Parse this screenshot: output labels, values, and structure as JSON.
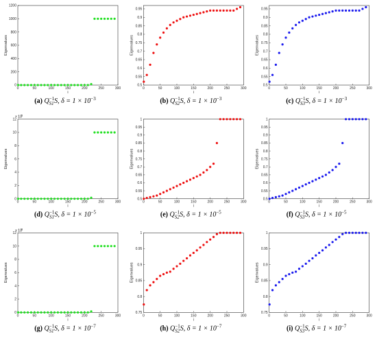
{
  "chart_data": [
    {
      "type": "scatter",
      "color": "#22e022",
      "xlabel": "i",
      "ylabel": "Eigenvalues",
      "caption": [
        {
          "text": "(a)",
          "style": "bold"
        },
        {
          "text": " Q",
          "style": "italic"
        },
        {
          "text": "−1",
          "style": "sup"
        },
        {
          "text": "S1",
          "style": "sub"
        },
        {
          "text": "S, δ = 1 × 10",
          "style": "italic"
        },
        {
          "text": "−3",
          "style": "sup"
        }
      ],
      "x": [
        1,
        10,
        20,
        30,
        40,
        50,
        60,
        70,
        80,
        90,
        100,
        110,
        120,
        130,
        140,
        150,
        160,
        170,
        180,
        190,
        200,
        210,
        220,
        230,
        240,
        250,
        260,
        270,
        280,
        290
      ],
      "values": [
        0,
        0,
        0,
        0,
        0,
        0,
        0,
        0,
        0,
        0,
        0,
        0,
        0,
        0,
        0,
        0,
        0,
        0,
        0,
        0,
        0,
        0,
        15,
        1000,
        1000,
        1000,
        1000,
        1000,
        1000,
        1000
      ],
      "xlim": [
        0,
        300
      ],
      "ylim": [
        0,
        1200
      ],
      "xticks": [
        0,
        50,
        100,
        150,
        200,
        250,
        300
      ],
      "yticks": [
        0,
        200,
        400,
        600,
        800,
        1000,
        1200
      ]
    },
    {
      "type": "scatter",
      "color": "#ee1111",
      "xlabel": "i",
      "ylabel": "Eigenvalues",
      "caption": [
        {
          "text": "(b)",
          "style": "bold"
        },
        {
          "text": " Q",
          "style": "italic"
        },
        {
          "text": "−1",
          "style": "sup"
        },
        {
          "text": "S2",
          "style": "sub"
        },
        {
          "text": "S, δ = 1 × 10",
          "style": "italic"
        },
        {
          "text": "−3",
          "style": "sup"
        }
      ],
      "x": [
        1,
        10,
        20,
        30,
        40,
        50,
        60,
        70,
        80,
        90,
        100,
        110,
        120,
        130,
        140,
        150,
        160,
        170,
        180,
        190,
        200,
        210,
        220,
        230,
        240,
        250,
        260,
        270,
        280,
        290
      ],
      "values": [
        0.52,
        0.56,
        0.62,
        0.69,
        0.74,
        0.78,
        0.81,
        0.835,
        0.855,
        0.87,
        0.88,
        0.89,
        0.9,
        0.905,
        0.91,
        0.915,
        0.92,
        0.925,
        0.93,
        0.935,
        0.94,
        0.94,
        0.94,
        0.94,
        0.94,
        0.94,
        0.94,
        0.94,
        0.95,
        0.96
      ],
      "xlim": [
        0,
        300
      ],
      "ylim": [
        0.5,
        0.97
      ],
      "xticks": [
        0,
        50,
        100,
        150,
        200,
        250,
        300
      ],
      "yticks": [
        0.5,
        0.55,
        0.6,
        0.65,
        0.7,
        0.75,
        0.8,
        0.85,
        0.9,
        0.95
      ]
    },
    {
      "type": "scatter",
      "color": "#1a1aee",
      "xlabel": "i",
      "ylabel": "Eigenvalues",
      "caption": [
        {
          "text": "(c)",
          "style": "bold"
        },
        {
          "text": " Q",
          "style": "italic"
        },
        {
          "text": "−1",
          "style": "sup"
        },
        {
          "text": "S3",
          "style": "sub"
        },
        {
          "text": "S, δ = 1 × 10",
          "style": "italic"
        },
        {
          "text": "−3",
          "style": "sup"
        }
      ],
      "x": [
        1,
        10,
        20,
        30,
        40,
        50,
        60,
        70,
        80,
        90,
        100,
        110,
        120,
        130,
        140,
        150,
        160,
        170,
        180,
        190,
        200,
        210,
        220,
        230,
        240,
        250,
        260,
        270,
        280,
        290
      ],
      "values": [
        0.52,
        0.56,
        0.62,
        0.69,
        0.74,
        0.78,
        0.81,
        0.835,
        0.855,
        0.87,
        0.88,
        0.89,
        0.9,
        0.905,
        0.91,
        0.915,
        0.92,
        0.925,
        0.93,
        0.935,
        0.94,
        0.94,
        0.94,
        0.94,
        0.94,
        0.94,
        0.94,
        0.94,
        0.95,
        0.96
      ],
      "xlim": [
        0,
        300
      ],
      "ylim": [
        0.5,
        0.97
      ],
      "xticks": [
        0,
        50,
        100,
        150,
        200,
        250,
        300
      ],
      "yticks": [
        0.5,
        0.55,
        0.6,
        0.65,
        0.7,
        0.75,
        0.8,
        0.85,
        0.9,
        0.95
      ]
    },
    {
      "type": "scatter",
      "color": "#22e022",
      "xlabel": "i",
      "ylabel": "Eigenvalues",
      "caption": [
        {
          "text": "(d)",
          "style": "bold"
        },
        {
          "text": " Q",
          "style": "italic"
        },
        {
          "text": "−1",
          "style": "sup"
        },
        {
          "text": "S1",
          "style": "sub"
        },
        {
          "text": "S, δ = 1 × 10",
          "style": "italic"
        },
        {
          "text": "−5",
          "style": "sup"
        }
      ],
      "y_multiplier": [
        {
          "text": "× 10",
          "style": "normal"
        },
        {
          "text": "5",
          "style": "sup"
        }
      ],
      "x": [
        1,
        10,
        20,
        30,
        40,
        50,
        60,
        70,
        80,
        90,
        100,
        110,
        120,
        130,
        140,
        150,
        160,
        170,
        180,
        190,
        200,
        210,
        220,
        230,
        240,
        250,
        260,
        270,
        280,
        290
      ],
      "values": [
        0,
        0,
        0,
        0,
        0,
        0,
        0,
        0,
        0,
        0,
        0,
        0,
        0,
        0,
        0,
        0,
        0,
        0,
        0,
        0,
        0,
        0,
        0.15,
        10,
        10,
        10,
        10,
        10,
        10,
        10
      ],
      "xlim": [
        0,
        300
      ],
      "ylim": [
        0,
        12
      ],
      "xticks": [
        0,
        50,
        100,
        150,
        200,
        250,
        300
      ],
      "yticks": [
        0,
        2,
        4,
        6,
        8,
        10,
        12
      ]
    },
    {
      "type": "scatter",
      "color": "#ee1111",
      "xlabel": "i",
      "ylabel": "Eigenvalues",
      "caption": [
        {
          "text": "(e)",
          "style": "bold"
        },
        {
          "text": " Q",
          "style": "italic"
        },
        {
          "text": "−1",
          "style": "sup"
        },
        {
          "text": "S2",
          "style": "sub"
        },
        {
          "text": "S, δ = 1 × 10",
          "style": "italic"
        },
        {
          "text": "−5",
          "style": "sup"
        }
      ],
      "x": [
        1,
        10,
        20,
        30,
        40,
        50,
        60,
        70,
        80,
        90,
        100,
        110,
        120,
        130,
        140,
        150,
        160,
        170,
        180,
        190,
        200,
        210,
        220,
        230,
        240,
        250,
        260,
        270,
        280,
        290
      ],
      "values": [
        0.5,
        0.505,
        0.51,
        0.515,
        0.52,
        0.53,
        0.54,
        0.55,
        0.56,
        0.57,
        0.58,
        0.59,
        0.6,
        0.61,
        0.62,
        0.63,
        0.64,
        0.65,
        0.665,
        0.68,
        0.7,
        0.72,
        0.85,
        1,
        1,
        1,
        1,
        1,
        1,
        1
      ],
      "xlim": [
        0,
        300
      ],
      "ylim": [
        0.5,
        1
      ],
      "xticks": [
        0,
        50,
        100,
        150,
        200,
        250,
        300
      ],
      "yticks": [
        0.5,
        0.55,
        0.6,
        0.65,
        0.7,
        0.75,
        0.8,
        0.85,
        0.9,
        0.95,
        1
      ]
    },
    {
      "type": "scatter",
      "color": "#1a1aee",
      "xlabel": "i",
      "ylabel": "Eigenvalues",
      "caption": [
        {
          "text": "(f)",
          "style": "bold"
        },
        {
          "text": " Q",
          "style": "italic"
        },
        {
          "text": "−1",
          "style": "sup"
        },
        {
          "text": "S3",
          "style": "sub"
        },
        {
          "text": "S, δ = 1 × 10",
          "style": "italic"
        },
        {
          "text": "−5",
          "style": "sup"
        }
      ],
      "x": [
        1,
        10,
        20,
        30,
        40,
        50,
        60,
        70,
        80,
        90,
        100,
        110,
        120,
        130,
        140,
        150,
        160,
        170,
        180,
        190,
        200,
        210,
        220,
        230,
        240,
        250,
        260,
        270,
        280,
        290
      ],
      "values": [
        0.5,
        0.505,
        0.51,
        0.515,
        0.52,
        0.53,
        0.54,
        0.55,
        0.56,
        0.57,
        0.58,
        0.59,
        0.6,
        0.61,
        0.62,
        0.63,
        0.64,
        0.65,
        0.665,
        0.68,
        0.7,
        0.72,
        0.85,
        1,
        1,
        1,
        1,
        1,
        1,
        1
      ],
      "xlim": [
        0,
        300
      ],
      "ylim": [
        0.5,
        1
      ],
      "xticks": [
        0,
        50,
        100,
        150,
        200,
        250,
        300
      ],
      "yticks": [
        0.5,
        0.55,
        0.6,
        0.65,
        0.7,
        0.75,
        0.8,
        0.85,
        0.9,
        0.95,
        1
      ]
    },
    {
      "type": "scatter",
      "color": "#22e022",
      "xlabel": "i",
      "ylabel": "Eigenvalues",
      "caption": [
        {
          "text": "(g)",
          "style": "bold"
        },
        {
          "text": " Q",
          "style": "italic"
        },
        {
          "text": "−1",
          "style": "sup"
        },
        {
          "text": "S1",
          "style": "sub"
        },
        {
          "text": "S, δ = 1 × 10",
          "style": "italic"
        },
        {
          "text": "−7",
          "style": "sup"
        }
      ],
      "y_multiplier": [
        {
          "text": "× 10",
          "style": "normal"
        },
        {
          "text": "8",
          "style": "sup"
        }
      ],
      "x": [
        1,
        10,
        20,
        30,
        40,
        50,
        60,
        70,
        80,
        90,
        100,
        110,
        120,
        130,
        140,
        150,
        160,
        170,
        180,
        190,
        200,
        210,
        220,
        230,
        240,
        250,
        260,
        270,
        280,
        290
      ],
      "values": [
        0,
        0,
        0,
        0,
        0,
        0,
        0,
        0,
        0,
        0,
        0,
        0,
        0,
        0,
        0,
        0,
        0,
        0,
        0,
        0,
        0,
        0,
        0.15,
        10,
        10,
        10,
        10,
        10,
        10,
        10
      ],
      "xlim": [
        0,
        300
      ],
      "ylim": [
        0,
        12
      ],
      "xticks": [
        0,
        50,
        100,
        150,
        200,
        250,
        300
      ],
      "yticks": [
        0,
        2,
        4,
        6,
        8,
        10,
        12
      ]
    },
    {
      "type": "scatter",
      "color": "#ee1111",
      "xlabel": "i",
      "ylabel": "Eigenvalues",
      "caption": [
        {
          "text": "(h)",
          "style": "bold"
        },
        {
          "text": " Q",
          "style": "italic"
        },
        {
          "text": "−1",
          "style": "sup"
        },
        {
          "text": "S2",
          "style": "sub"
        },
        {
          "text": "S, δ = 1 × 10",
          "style": "italic"
        },
        {
          "text": "−7",
          "style": "sup"
        }
      ],
      "x": [
        1,
        10,
        20,
        30,
        40,
        50,
        60,
        70,
        80,
        90,
        100,
        110,
        120,
        130,
        140,
        150,
        160,
        170,
        180,
        190,
        200,
        210,
        220,
        230,
        240,
        250,
        260,
        270,
        280,
        290
      ],
      "values": [
        0.775,
        0.82,
        0.835,
        0.845,
        0.855,
        0.865,
        0.87,
        0.875,
        0.878,
        0.887,
        0.895,
        0.903,
        0.912,
        0.92,
        0.929,
        0.937,
        0.945,
        0.954,
        0.962,
        0.971,
        0.979,
        0.987,
        0.996,
        1,
        1,
        1,
        1,
        1,
        1,
        1
      ],
      "xlim": [
        0,
        300
      ],
      "ylim": [
        0.75,
        1
      ],
      "xticks": [
        0,
        50,
        100,
        150,
        200,
        250,
        300
      ],
      "yticks": [
        0.75,
        0.8,
        0.85,
        0.9,
        0.95,
        1
      ]
    },
    {
      "type": "scatter",
      "color": "#1a1aee",
      "xlabel": "i",
      "ylabel": "Eigenvalues",
      "caption": [
        {
          "text": "(i)",
          "style": "bold"
        },
        {
          "text": " Q",
          "style": "italic"
        },
        {
          "text": "−1",
          "style": "sup"
        },
        {
          "text": "S3",
          "style": "sub"
        },
        {
          "text": "S, δ = 1 × 10",
          "style": "italic"
        },
        {
          "text": "−7",
          "style": "sup"
        }
      ],
      "x": [
        1,
        10,
        20,
        30,
        40,
        50,
        60,
        70,
        80,
        90,
        100,
        110,
        120,
        130,
        140,
        150,
        160,
        170,
        180,
        190,
        200,
        210,
        220,
        230,
        240,
        250,
        260,
        270,
        280,
        290
      ],
      "values": [
        0.775,
        0.82,
        0.835,
        0.845,
        0.855,
        0.865,
        0.87,
        0.875,
        0.878,
        0.887,
        0.895,
        0.903,
        0.912,
        0.92,
        0.929,
        0.937,
        0.945,
        0.954,
        0.962,
        0.971,
        0.979,
        0.987,
        0.996,
        1,
        1,
        1,
        1,
        1,
        1,
        1
      ],
      "xlim": [
        0,
        300
      ],
      "ylim": [
        0.75,
        1
      ],
      "xticks": [
        0,
        50,
        100,
        150,
        200,
        250,
        300
      ],
      "yticks": [
        0.75,
        0.8,
        0.85,
        0.9,
        0.95,
        1
      ]
    }
  ]
}
